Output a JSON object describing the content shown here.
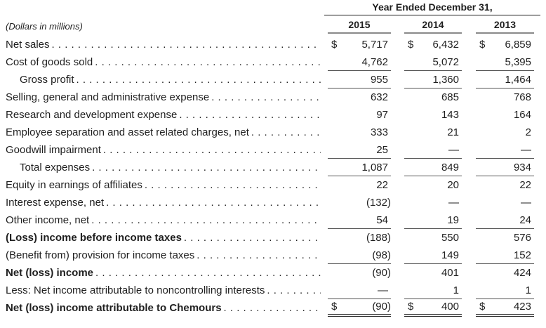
{
  "table": {
    "period_header": "Year Ended December 31,",
    "units_label": "(Dollars in millions)",
    "years": [
      "2015",
      "2014",
      "2013"
    ],
    "currency_symbol": "$",
    "leader": {
      "pattern": ". ",
      "repeat": 90
    },
    "colors": {
      "text": "#1f1f1f",
      "header_rule": "#1a1a1a",
      "year_underline": "#8a8a8a",
      "value_rule": "#545454",
      "double_rule": "#2f2f2f"
    },
    "rows": [
      {
        "label": "Net sales",
        "indent": false,
        "bold": false,
        "dollar": true,
        "values": [
          "5,717",
          "6,432",
          "6,859"
        ],
        "rule": "none"
      },
      {
        "label": "Cost of goods sold",
        "indent": false,
        "bold": false,
        "dollar": false,
        "values": [
          "4,762",
          "5,072",
          "5,395"
        ],
        "rule": "single"
      },
      {
        "label": "Gross profit",
        "indent": true,
        "bold": false,
        "dollar": false,
        "values": [
          "955",
          "1,360",
          "1,464"
        ],
        "rule": "single"
      },
      {
        "label": "Selling, general and administrative expense",
        "indent": false,
        "bold": false,
        "dollar": false,
        "values": [
          "632",
          "685",
          "768"
        ],
        "rule": "none"
      },
      {
        "label": "Research and development expense",
        "indent": false,
        "bold": false,
        "dollar": false,
        "values": [
          "97",
          "143",
          "164"
        ],
        "rule": "none"
      },
      {
        "label": "Employee separation and asset related charges, net",
        "indent": false,
        "bold": false,
        "dollar": false,
        "values": [
          "333",
          "21",
          "2"
        ],
        "rule": "none"
      },
      {
        "label": "Goodwill impairment",
        "indent": false,
        "bold": false,
        "dollar": false,
        "values": [
          "25",
          "—",
          "—"
        ],
        "rule": "single"
      },
      {
        "label": "Total expenses",
        "indent": true,
        "bold": false,
        "dollar": false,
        "values": [
          "1,087",
          "849",
          "934"
        ],
        "rule": "single"
      },
      {
        "label": "Equity in earnings of affiliates",
        "indent": false,
        "bold": false,
        "dollar": false,
        "values": [
          "22",
          "20",
          "22"
        ],
        "rule": "none"
      },
      {
        "label": "Interest expense, net",
        "indent": false,
        "bold": false,
        "dollar": false,
        "values": [
          "(132)",
          "—",
          "—"
        ],
        "rule": "none"
      },
      {
        "label": "Other income, net",
        "indent": false,
        "bold": false,
        "dollar": false,
        "values": [
          "54",
          "19",
          "24"
        ],
        "rule": "single"
      },
      {
        "label": "(Loss) income before income taxes",
        "indent": false,
        "bold": true,
        "dollar": false,
        "values": [
          "(188)",
          "550",
          "576"
        ],
        "rule": "none"
      },
      {
        "label": "(Benefit from) provision for income taxes",
        "indent": false,
        "bold": false,
        "dollar": false,
        "values": [
          "(98)",
          "149",
          "152"
        ],
        "rule": "single"
      },
      {
        "label": "Net (loss) income",
        "indent": false,
        "bold": true,
        "dollar": false,
        "values": [
          "(90)",
          "401",
          "424"
        ],
        "rule": "none"
      },
      {
        "label": "Less: Net income attributable to noncontrolling interests",
        "indent": false,
        "bold": false,
        "dollar": false,
        "values": [
          "—",
          "1",
          "1"
        ],
        "rule": "single"
      },
      {
        "label": "Net (loss) income attributable to Chemours",
        "indent": false,
        "bold": true,
        "dollar": true,
        "values": [
          "(90)",
          "400",
          "423"
        ],
        "rule": "double"
      }
    ]
  }
}
